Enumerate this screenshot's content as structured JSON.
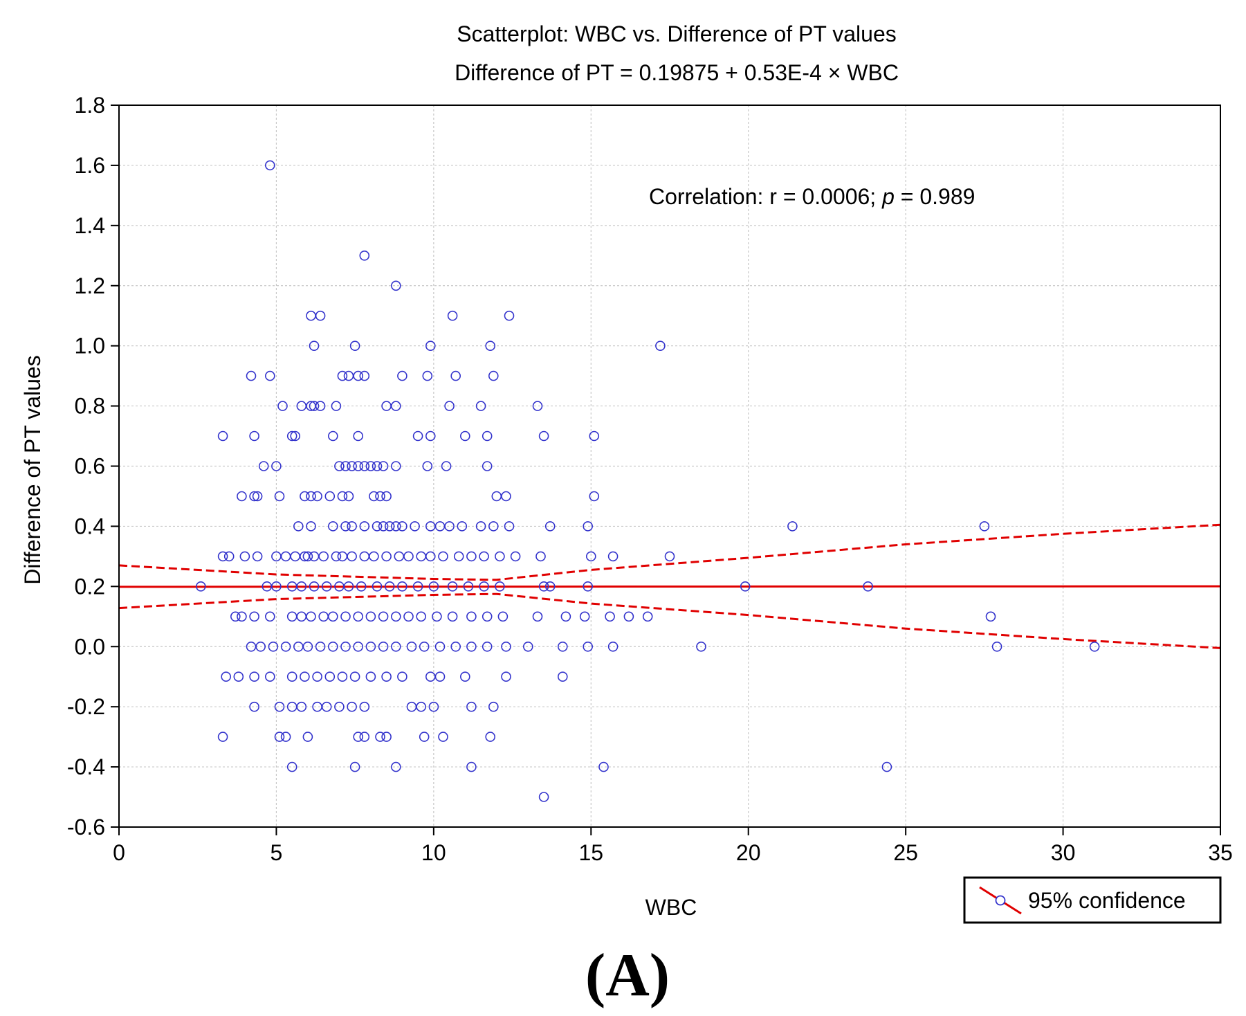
{
  "chart_data": {
    "type": "scatter",
    "title": "Scatterplot: WBC  vs. Difference of PT values",
    "subtitle": "Difference of PT = 0.19875 + 0.53E-4 × WBC",
    "xlabel": "WBC",
    "ylabel": "Difference of PT values",
    "xlim": [
      0,
      35
    ],
    "ylim": [
      -0.6,
      1.8
    ],
    "x_ticks": [
      0,
      5,
      10,
      15,
      20,
      25,
      30,
      35
    ],
    "y_ticks": [
      -0.6,
      -0.4,
      -0.2,
      0.0,
      0.2,
      0.4,
      0.6,
      0.8,
      1.0,
      1.2,
      1.4,
      1.6,
      1.8
    ],
    "x_tick_labels": [
      "0",
      "5",
      "10",
      "15",
      "20",
      "25",
      "30",
      "35"
    ],
    "y_tick_labels": [
      "-0.6",
      "-0.4",
      "-0.2",
      "0.0",
      "0.2",
      "0.4",
      "0.6",
      "0.8",
      "1.0",
      "1.2",
      "1.4",
      "1.6",
      "1.8"
    ],
    "grid": true,
    "annotation": {
      "prefix": "Correlation:  r = 0.0006; ",
      "italic": "p",
      "suffix": " = 0.989"
    },
    "legend": {
      "label": "95% confidence",
      "position": "bottom-right"
    },
    "panel_label": "(A)",
    "colors": {
      "points": "#3333cc",
      "regression": "#e00000",
      "grid": "#c8c8c8"
    },
    "regression": {
      "intercept": 0.19875,
      "slope": 5.3e-05
    },
    "confidence_band": {
      "upper": [
        [
          0,
          0.27
        ],
        [
          5,
          0.24
        ],
        [
          10,
          0.225
        ],
        [
          12,
          0.222
        ],
        [
          15,
          0.255
        ],
        [
          20,
          0.295
        ],
        [
          25,
          0.34
        ],
        [
          30,
          0.375
        ],
        [
          35,
          0.405
        ]
      ],
      "lower": [
        [
          0,
          0.128
        ],
        [
          5,
          0.158
        ],
        [
          10,
          0.172
        ],
        [
          12,
          0.175
        ],
        [
          15,
          0.143
        ],
        [
          20,
          0.105
        ],
        [
          25,
          0.06
        ],
        [
          30,
          0.025
        ],
        [
          35,
          -0.005
        ]
      ]
    },
    "points": [
      [
        4.8,
        1.6
      ],
      [
        7.8,
        1.3
      ],
      [
        8.8,
        1.2
      ],
      [
        6.1,
        1.1
      ],
      [
        6.4,
        1.1
      ],
      [
        10.6,
        1.1
      ],
      [
        12.4,
        1.1
      ],
      [
        6.2,
        1.0
      ],
      [
        7.5,
        1.0
      ],
      [
        9.9,
        1.0
      ],
      [
        11.8,
        1.0
      ],
      [
        17.2,
        1.0
      ],
      [
        4.2,
        0.9
      ],
      [
        4.8,
        0.9
      ],
      [
        7.1,
        0.9
      ],
      [
        7.3,
        0.9
      ],
      [
        7.6,
        0.9
      ],
      [
        7.8,
        0.9
      ],
      [
        9.0,
        0.9
      ],
      [
        9.8,
        0.9
      ],
      [
        10.7,
        0.9
      ],
      [
        11.9,
        0.9
      ],
      [
        5.2,
        0.8
      ],
      [
        5.8,
        0.8
      ],
      [
        6.1,
        0.8
      ],
      [
        6.2,
        0.8
      ],
      [
        6.4,
        0.8
      ],
      [
        6.9,
        0.8
      ],
      [
        8.5,
        0.8
      ],
      [
        8.8,
        0.8
      ],
      [
        10.5,
        0.8
      ],
      [
        11.5,
        0.8
      ],
      [
        13.3,
        0.8
      ],
      [
        3.3,
        0.7
      ],
      [
        4.3,
        0.7
      ],
      [
        5.5,
        0.7
      ],
      [
        5.6,
        0.7
      ],
      [
        6.8,
        0.7
      ],
      [
        7.6,
        0.7
      ],
      [
        9.5,
        0.7
      ],
      [
        9.9,
        0.7
      ],
      [
        11.0,
        0.7
      ],
      [
        11.7,
        0.7
      ],
      [
        13.5,
        0.7
      ],
      [
        15.1,
        0.7
      ],
      [
        4.6,
        0.6
      ],
      [
        5.0,
        0.6
      ],
      [
        7.0,
        0.6
      ],
      [
        7.2,
        0.6
      ],
      [
        7.4,
        0.6
      ],
      [
        7.6,
        0.6
      ],
      [
        7.8,
        0.6
      ],
      [
        8.0,
        0.6
      ],
      [
        8.2,
        0.6
      ],
      [
        8.4,
        0.6
      ],
      [
        8.8,
        0.6
      ],
      [
        9.8,
        0.6
      ],
      [
        10.4,
        0.6
      ],
      [
        11.7,
        0.6
      ],
      [
        3.9,
        0.5
      ],
      [
        4.3,
        0.5
      ],
      [
        4.4,
        0.5
      ],
      [
        5.1,
        0.5
      ],
      [
        5.9,
        0.5
      ],
      [
        6.1,
        0.5
      ],
      [
        6.3,
        0.5
      ],
      [
        6.7,
        0.5
      ],
      [
        7.1,
        0.5
      ],
      [
        7.3,
        0.5
      ],
      [
        8.1,
        0.5
      ],
      [
        8.3,
        0.5
      ],
      [
        8.5,
        0.5
      ],
      [
        12.0,
        0.5
      ],
      [
        12.3,
        0.5
      ],
      [
        15.1,
        0.5
      ],
      [
        5.7,
        0.4
      ],
      [
        6.1,
        0.4
      ],
      [
        6.8,
        0.4
      ],
      [
        7.2,
        0.4
      ],
      [
        7.4,
        0.4
      ],
      [
        7.8,
        0.4
      ],
      [
        8.2,
        0.4
      ],
      [
        8.4,
        0.4
      ],
      [
        8.6,
        0.4
      ],
      [
        8.8,
        0.4
      ],
      [
        9.0,
        0.4
      ],
      [
        9.4,
        0.4
      ],
      [
        9.9,
        0.4
      ],
      [
        10.2,
        0.4
      ],
      [
        10.5,
        0.4
      ],
      [
        10.9,
        0.4
      ],
      [
        11.5,
        0.4
      ],
      [
        11.9,
        0.4
      ],
      [
        12.4,
        0.4
      ],
      [
        13.7,
        0.4
      ],
      [
        14.9,
        0.4
      ],
      [
        21.4,
        0.4
      ],
      [
        27.5,
        0.4
      ],
      [
        3.3,
        0.3
      ],
      [
        3.5,
        0.3
      ],
      [
        4.0,
        0.3
      ],
      [
        4.4,
        0.3
      ],
      [
        5.0,
        0.3
      ],
      [
        5.3,
        0.3
      ],
      [
        5.6,
        0.3
      ],
      [
        5.9,
        0.3
      ],
      [
        6.0,
        0.3
      ],
      [
        6.2,
        0.3
      ],
      [
        6.5,
        0.3
      ],
      [
        6.9,
        0.3
      ],
      [
        7.1,
        0.3
      ],
      [
        7.4,
        0.3
      ],
      [
        7.8,
        0.3
      ],
      [
        8.1,
        0.3
      ],
      [
        8.5,
        0.3
      ],
      [
        8.9,
        0.3
      ],
      [
        9.2,
        0.3
      ],
      [
        9.6,
        0.3
      ],
      [
        9.9,
        0.3
      ],
      [
        10.3,
        0.3
      ],
      [
        10.8,
        0.3
      ],
      [
        11.2,
        0.3
      ],
      [
        11.6,
        0.3
      ],
      [
        12.1,
        0.3
      ],
      [
        12.6,
        0.3
      ],
      [
        13.4,
        0.3
      ],
      [
        15.0,
        0.3
      ],
      [
        15.7,
        0.3
      ],
      [
        17.5,
        0.3
      ],
      [
        2.6,
        0.2
      ],
      [
        4.7,
        0.2
      ],
      [
        5.0,
        0.2
      ],
      [
        5.5,
        0.2
      ],
      [
        5.8,
        0.2
      ],
      [
        6.2,
        0.2
      ],
      [
        6.6,
        0.2
      ],
      [
        7.0,
        0.2
      ],
      [
        7.3,
        0.2
      ],
      [
        7.7,
        0.2
      ],
      [
        8.2,
        0.2
      ],
      [
        8.6,
        0.2
      ],
      [
        9.0,
        0.2
      ],
      [
        9.5,
        0.2
      ],
      [
        10.0,
        0.2
      ],
      [
        10.6,
        0.2
      ],
      [
        11.1,
        0.2
      ],
      [
        11.6,
        0.2
      ],
      [
        12.1,
        0.2
      ],
      [
        13.5,
        0.2
      ],
      [
        13.7,
        0.2
      ],
      [
        14.9,
        0.2
      ],
      [
        19.9,
        0.2
      ],
      [
        23.8,
        0.2
      ],
      [
        3.7,
        0.1
      ],
      [
        3.9,
        0.1
      ],
      [
        4.3,
        0.1
      ],
      [
        4.8,
        0.1
      ],
      [
        5.5,
        0.1
      ],
      [
        5.8,
        0.1
      ],
      [
        6.1,
        0.1
      ],
      [
        6.5,
        0.1
      ],
      [
        6.8,
        0.1
      ],
      [
        7.2,
        0.1
      ],
      [
        7.6,
        0.1
      ],
      [
        8.0,
        0.1
      ],
      [
        8.4,
        0.1
      ],
      [
        8.8,
        0.1
      ],
      [
        9.2,
        0.1
      ],
      [
        9.6,
        0.1
      ],
      [
        10.1,
        0.1
      ],
      [
        10.6,
        0.1
      ],
      [
        11.2,
        0.1
      ],
      [
        11.7,
        0.1
      ],
      [
        12.2,
        0.1
      ],
      [
        13.3,
        0.1
      ],
      [
        14.2,
        0.1
      ],
      [
        14.8,
        0.1
      ],
      [
        15.6,
        0.1
      ],
      [
        16.2,
        0.1
      ],
      [
        16.8,
        0.1
      ],
      [
        27.7,
        0.1
      ],
      [
        4.2,
        0.0
      ],
      [
        4.5,
        0.0
      ],
      [
        4.9,
        0.0
      ],
      [
        5.3,
        0.0
      ],
      [
        5.7,
        0.0
      ],
      [
        6.0,
        0.0
      ],
      [
        6.4,
        0.0
      ],
      [
        6.8,
        0.0
      ],
      [
        7.2,
        0.0
      ],
      [
        7.6,
        0.0
      ],
      [
        8.0,
        0.0
      ],
      [
        8.4,
        0.0
      ],
      [
        8.8,
        0.0
      ],
      [
        9.3,
        0.0
      ],
      [
        9.7,
        0.0
      ],
      [
        10.2,
        0.0
      ],
      [
        10.7,
        0.0
      ],
      [
        11.2,
        0.0
      ],
      [
        11.7,
        0.0
      ],
      [
        12.3,
        0.0
      ],
      [
        13.0,
        0.0
      ],
      [
        14.1,
        0.0
      ],
      [
        14.9,
        0.0
      ],
      [
        15.7,
        0.0
      ],
      [
        18.5,
        0.0
      ],
      [
        27.9,
        0.0
      ],
      [
        31.0,
        0.0
      ],
      [
        3.4,
        -0.1
      ],
      [
        3.8,
        -0.1
      ],
      [
        4.3,
        -0.1
      ],
      [
        4.8,
        -0.1
      ],
      [
        5.5,
        -0.1
      ],
      [
        5.9,
        -0.1
      ],
      [
        6.3,
        -0.1
      ],
      [
        6.7,
        -0.1
      ],
      [
        7.1,
        -0.1
      ],
      [
        7.5,
        -0.1
      ],
      [
        8.0,
        -0.1
      ],
      [
        8.5,
        -0.1
      ],
      [
        9.0,
        -0.1
      ],
      [
        9.9,
        -0.1
      ],
      [
        10.2,
        -0.1
      ],
      [
        11.0,
        -0.1
      ],
      [
        12.3,
        -0.1
      ],
      [
        14.1,
        -0.1
      ],
      [
        4.3,
        -0.2
      ],
      [
        5.1,
        -0.2
      ],
      [
        5.5,
        -0.2
      ],
      [
        5.8,
        -0.2
      ],
      [
        6.3,
        -0.2
      ],
      [
        6.6,
        -0.2
      ],
      [
        7.0,
        -0.2
      ],
      [
        7.4,
        -0.2
      ],
      [
        7.8,
        -0.2
      ],
      [
        9.3,
        -0.2
      ],
      [
        9.6,
        -0.2
      ],
      [
        10.0,
        -0.2
      ],
      [
        11.2,
        -0.2
      ],
      [
        11.9,
        -0.2
      ],
      [
        3.3,
        -0.3
      ],
      [
        5.1,
        -0.3
      ],
      [
        5.3,
        -0.3
      ],
      [
        6.0,
        -0.3
      ],
      [
        7.6,
        -0.3
      ],
      [
        7.8,
        -0.3
      ],
      [
        8.3,
        -0.3
      ],
      [
        8.5,
        -0.3
      ],
      [
        9.7,
        -0.3
      ],
      [
        10.3,
        -0.3
      ],
      [
        11.8,
        -0.3
      ],
      [
        5.5,
        -0.4
      ],
      [
        7.5,
        -0.4
      ],
      [
        8.8,
        -0.4
      ],
      [
        11.2,
        -0.4
      ],
      [
        15.4,
        -0.4
      ],
      [
        24.4,
        -0.4
      ],
      [
        13.5,
        -0.5
      ]
    ]
  }
}
